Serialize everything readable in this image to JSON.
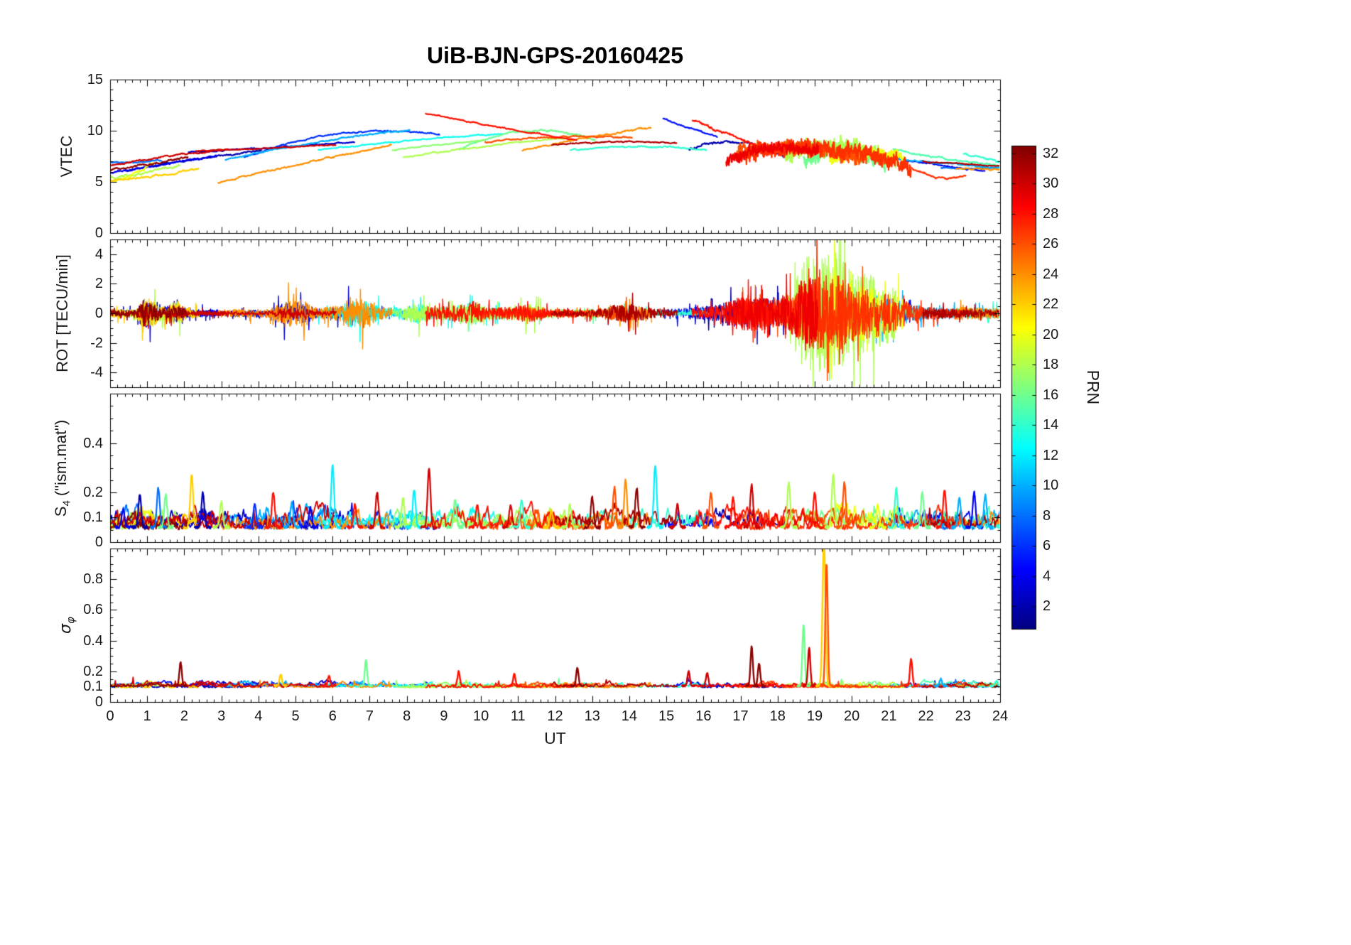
{
  "chart_data": {
    "type": "line",
    "title": "UiB-BJN-GPS-20160425",
    "xlabel": "UT",
    "x_range": [
      0,
      24
    ],
    "x_ticks": [
      0,
      1,
      2,
      3,
      4,
      5,
      6,
      7,
      8,
      9,
      10,
      11,
      12,
      13,
      14,
      15,
      16,
      17,
      18,
      19,
      20,
      21,
      22,
      23,
      24
    ],
    "colorbar": {
      "label": "PRN",
      "colormap": "jet",
      "vmin": 0.5,
      "vmax": 32.5,
      "ticks": [
        2,
        4,
        6,
        8,
        10,
        12,
        14,
        16,
        18,
        20,
        22,
        24,
        26,
        28,
        30,
        32
      ]
    },
    "panels": [
      {
        "name": "VTEC",
        "ylabel": "VTEC",
        "ylim": [
          0,
          15
        ],
        "yticks": [
          0,
          5,
          10,
          15
        ]
      },
      {
        "name": "ROT",
        "ylabel": "ROT [TECU/min]",
        "ylim": [
          -5,
          5
        ],
        "yticks": [
          -4,
          -2,
          0,
          2,
          4
        ]
      },
      {
        "name": "S4",
        "ylabel_main": "S",
        "ylabel_sub": "4",
        "ylabel_rest": " (\"ism.mat\")",
        "ylim": [
          0,
          0.6
        ],
        "yticks": [
          0,
          0.1,
          0.2,
          0.4
        ],
        "baseline": 0.06,
        "spikes": [
          {
            "t": 0.35,
            "h": 0.13,
            "prn": 4
          },
          {
            "t": 0.8,
            "h": 0.19,
            "prn": 2
          },
          {
            "t": 1.3,
            "h": 0.22,
            "prn": 8
          },
          {
            "t": 1.5,
            "h": 0.19,
            "prn": 16
          },
          {
            "t": 2.2,
            "h": 0.27,
            "prn": 22
          },
          {
            "t": 2.5,
            "h": 0.2,
            "prn": 2
          },
          {
            "t": 3.0,
            "h": 0.16,
            "prn": 18
          },
          {
            "t": 3.9,
            "h": 0.15,
            "prn": 6
          },
          {
            "t": 4.4,
            "h": 0.2,
            "prn": 28
          },
          {
            "t": 4.9,
            "h": 0.16,
            "prn": 10
          },
          {
            "t": 5.4,
            "h": 0.14,
            "prn": 4
          },
          {
            "t": 6.0,
            "h": 0.31,
            "prn": 12
          },
          {
            "t": 6.6,
            "h": 0.15,
            "prn": 28
          },
          {
            "t": 7.2,
            "h": 0.2,
            "prn": 30
          },
          {
            "t": 7.9,
            "h": 0.18,
            "prn": 18
          },
          {
            "t": 8.2,
            "h": 0.21,
            "prn": 12
          },
          {
            "t": 8.6,
            "h": 0.3,
            "prn": 30
          },
          {
            "t": 9.3,
            "h": 0.17,
            "prn": 16
          },
          {
            "t": 9.9,
            "h": 0.15,
            "prn": 28
          },
          {
            "t": 10.8,
            "h": 0.15,
            "prn": 30
          },
          {
            "t": 11.1,
            "h": 0.17,
            "prn": 14
          },
          {
            "t": 11.9,
            "h": 0.13,
            "prn": 22
          },
          {
            "t": 12.4,
            "h": 0.15,
            "prn": 18
          },
          {
            "t": 13.0,
            "h": 0.18,
            "prn": 32
          },
          {
            "t": 13.6,
            "h": 0.22,
            "prn": 26
          },
          {
            "t": 13.9,
            "h": 0.25,
            "prn": 24
          },
          {
            "t": 14.2,
            "h": 0.22,
            "prn": 32
          },
          {
            "t": 14.7,
            "h": 0.31,
            "prn": 12
          },
          {
            "t": 15.3,
            "h": 0.15,
            "prn": 30
          },
          {
            "t": 16.2,
            "h": 0.2,
            "prn": 26
          },
          {
            "t": 16.8,
            "h": 0.18,
            "prn": 28
          },
          {
            "t": 17.3,
            "h": 0.23,
            "prn": 30
          },
          {
            "t": 18.3,
            "h": 0.24,
            "prn": 18
          },
          {
            "t": 19.0,
            "h": 0.2,
            "prn": 28
          },
          {
            "t": 19.5,
            "h": 0.27,
            "prn": 18
          },
          {
            "t": 19.8,
            "h": 0.24,
            "prn": 26
          },
          {
            "t": 20.7,
            "h": 0.15,
            "prn": 20
          },
          {
            "t": 21.2,
            "h": 0.22,
            "prn": 14
          },
          {
            "t": 21.9,
            "h": 0.2,
            "prn": 16
          },
          {
            "t": 22.5,
            "h": 0.21,
            "prn": 28
          },
          {
            "t": 22.9,
            "h": 0.18,
            "prn": 10
          },
          {
            "t": 23.3,
            "h": 0.2,
            "prn": 4
          },
          {
            "t": 23.6,
            "h": 0.19,
            "prn": 10
          }
        ]
      },
      {
        "name": "sigma_phi",
        "ylabel_main": "σ",
        "ylabel_sub": "φ",
        "ylim": [
          0,
          1.0
        ],
        "yticks": [
          0,
          0.1,
          0.2,
          0.4,
          0.6,
          0.8
        ],
        "baseline": 0.1,
        "spikes": [
          {
            "t": 1.9,
            "h": 0.26,
            "prn": 32
          },
          {
            "t": 4.6,
            "h": 0.18,
            "prn": 22
          },
          {
            "t": 5.9,
            "h": 0.17,
            "prn": 28
          },
          {
            "t": 6.9,
            "h": 0.27,
            "prn": 16
          },
          {
            "t": 9.4,
            "h": 0.2,
            "prn": 28
          },
          {
            "t": 10.9,
            "h": 0.18,
            "prn": 28
          },
          {
            "t": 12.6,
            "h": 0.22,
            "prn": 32
          },
          {
            "t": 15.6,
            "h": 0.2,
            "prn": 30
          },
          {
            "t": 16.1,
            "h": 0.19,
            "prn": 30
          },
          {
            "t": 17.3,
            "h": 0.36,
            "prn": 32
          },
          {
            "t": 17.5,
            "h": 0.25,
            "prn": 32
          },
          {
            "t": 18.7,
            "h": 0.5,
            "prn": 16
          },
          {
            "t": 18.85,
            "h": 0.35,
            "prn": 30
          },
          {
            "t": 19.25,
            "h": 1.05,
            "prn": 22,
            "w": 0.055
          },
          {
            "t": 19.32,
            "h": 0.9,
            "prn": 26
          },
          {
            "t": 21.6,
            "h": 0.28,
            "prn": 28
          },
          {
            "t": 22.4,
            "h": 0.15,
            "prn": 10
          },
          {
            "t": 23.9,
            "h": 0.14,
            "prn": 14
          }
        ]
      }
    ],
    "arcs": [
      {
        "prn": 30,
        "t0": 0,
        "t1": 3.2,
        "v": [
          6.6,
          7.6,
          8.2
        ],
        "n": 0.15
      },
      {
        "prn": 32,
        "t0": 0,
        "t1": 2.1,
        "v": [
          6.2,
          6.6,
          7.4
        ],
        "n": 0.2
      },
      {
        "prn": 22,
        "t0": 0,
        "t1": 2.4,
        "v": [
          5.1,
          5.4,
          6.3
        ],
        "n": 0.2
      },
      {
        "prn": 18,
        "t0": 0,
        "t1": 1.9,
        "v": [
          5.4,
          5.9,
          6.6
        ],
        "n": 0.25
      },
      {
        "prn": 4,
        "t0": 0,
        "t1": 2.9,
        "v": [
          5.9,
          6.6,
          7.6
        ],
        "n": 0.2
      },
      {
        "prn": 8,
        "t0": 0,
        "t1": 1.4,
        "v": [
          6.9,
          6.8,
          7.1
        ],
        "n": 0.15
      },
      {
        "prn": 2,
        "t0": 0.4,
        "t1": 4.1,
        "v": [
          6.1,
          7.3,
          8.1
        ],
        "n": 0.18
      },
      {
        "prn": 20,
        "t0": 0.1,
        "t1": 1.2,
        "v": [
          5.0,
          5.6,
          6.9
        ],
        "n": 0.3
      },
      {
        "prn": 24,
        "t0": 2.9,
        "t1": 7.6,
        "v": [
          4.9,
          6.9,
          8.6
        ],
        "n": 0.15
      },
      {
        "prn": 10,
        "t0": 3.1,
        "t1": 8.1,
        "v": [
          7.1,
          9.2,
          10.1
        ],
        "n": 0.15
      },
      {
        "prn": 6,
        "t0": 3.6,
        "t1": 8.9,
        "v": [
          7.4,
          10.9,
          9.6
        ],
        "n": 0.15
      },
      {
        "prn": 3,
        "t0": 2.1,
        "t1": 6.6,
        "v": [
          7.9,
          8.3,
          8.9
        ],
        "n": 0.12
      },
      {
        "prn": 30,
        "t0": 2.3,
        "t1": 6.1,
        "v": [
          8.0,
          8.3,
          8.6
        ],
        "n": 0.1
      },
      {
        "prn": 13,
        "t0": 5.6,
        "t1": 10.6,
        "v": [
          8.1,
          9.2,
          9.7
        ],
        "n": 0.12
      },
      {
        "prn": 28,
        "t0": 8.5,
        "t1": 12.6,
        "v": [
          11.7,
          10.2,
          9.1
        ],
        "n": 0.12
      },
      {
        "prn": 17,
        "t0": 7.6,
        "t1": 10.1,
        "v": [
          8.1,
          8.7,
          9.1
        ],
        "n": 0.12
      },
      {
        "prn": 18,
        "t0": 7.9,
        "t1": 12.4,
        "v": [
          7.4,
          8.6,
          9.4
        ],
        "n": 0.15
      },
      {
        "prn": 16,
        "t0": 9.4,
        "t1": 13.1,
        "v": [
          8.2,
          11.3,
          9.1
        ],
        "n": 0.2
      },
      {
        "prn": 26,
        "t0": 10.1,
        "t1": 14.1,
        "v": [
          8.9,
          9.7,
          9.3
        ],
        "n": 0.15
      },
      {
        "prn": 24,
        "t0": 11.1,
        "t1": 14.6,
        "v": [
          8.1,
          9.4,
          10.3
        ],
        "n": 0.18
      },
      {
        "prn": 31,
        "t0": 11.9,
        "t1": 15.3,
        "v": [
          8.6,
          9.1,
          8.8
        ],
        "n": 0.12
      },
      {
        "prn": 14,
        "t0": 12.4,
        "t1": 16.1,
        "v": [
          8.1,
          8.8,
          8.1
        ],
        "n": 0.15
      },
      {
        "prn": 5,
        "t0": 14.9,
        "t1": 16.4,
        "v": [
          11.2,
          10.1,
          9.4
        ],
        "n": 0.15
      },
      {
        "prn": 2,
        "t0": 15.6,
        "t1": 18.2,
        "v": [
          8.1,
          9.9,
          7.4
        ],
        "n": 0.3
      },
      {
        "prn": 28,
        "t0": 15.7,
        "t1": 17.9,
        "v": [
          11.1,
          9.4,
          7.9
        ],
        "n": 0.3
      },
      {
        "prn": 29,
        "t0": 16.6,
        "t1": 19.1,
        "v": [
          7.1,
          9.1,
          7.9
        ],
        "n": 0.55,
        "hf": 1
      },
      {
        "prn": 27,
        "t0": 17.0,
        "t1": 21.6,
        "v": [
          7.6,
          9.4,
          6.6
        ],
        "n": 0.8,
        "hf": 1
      },
      {
        "prn": 18,
        "t0": 18.2,
        "t1": 21.2,
        "v": [
          7.4,
          9.6,
          6.9
        ],
        "n": 0.85,
        "hf": 1
      },
      {
        "prn": 16,
        "t0": 18.7,
        "t1": 20.9,
        "v": [
          7.1,
          9.2,
          6.6
        ],
        "n": 0.7,
        "hf": 1
      },
      {
        "prn": 20,
        "t0": 19.4,
        "t1": 21.4,
        "v": [
          7.1,
          8.4,
          7.4
        ],
        "n": 0.5,
        "hf": 1
      },
      {
        "prn": 26,
        "t0": 16.9,
        "t1": 20.4,
        "v": [
          7.9,
          8.9,
          7.1
        ],
        "n": 0.7,
        "hf": 1
      },
      {
        "prn": 10,
        "t0": 20.6,
        "t1": 24,
        "v": [
          7.4,
          7.0,
          6.3
        ],
        "n": 0.2
      },
      {
        "prn": 15,
        "t0": 21.1,
        "t1": 24,
        "v": [
          8.2,
          7.0,
          6.6
        ],
        "n": 0.2
      },
      {
        "prn": 27,
        "t0": 21.6,
        "t1": 23.1,
        "v": [
          6.4,
          4.9,
          5.6
        ],
        "n": 0.2
      },
      {
        "prn": 31,
        "t0": 21.9,
        "t1": 24,
        "v": [
          7.0,
          6.8,
          6.5
        ],
        "n": 0.12
      },
      {
        "prn": 4,
        "t0": 21.0,
        "t1": 23.6,
        "v": [
          7.4,
          6.6,
          6.1
        ],
        "n": 0.15
      },
      {
        "prn": 8,
        "t0": 22.4,
        "t1": 24,
        "v": [
          6.4,
          6.2,
          6.4
        ],
        "n": 0.12
      },
      {
        "prn": 14,
        "t0": 23.0,
        "t1": 24,
        "v": [
          7.7,
          7.5,
          6.9
        ],
        "n": 0.2
      },
      {
        "prn": 24,
        "t0": 22.8,
        "t1": 24,
        "v": [
          6.3,
          6.4,
          6.2
        ],
        "n": 0.15
      }
    ],
    "rot_envelope": [
      [
        0,
        0.25
      ],
      [
        0.7,
        0.25
      ],
      [
        0.9,
        1.2
      ],
      [
        1.1,
        0.9
      ],
      [
        1.4,
        0.4
      ],
      [
        1.8,
        0.8
      ],
      [
        2.1,
        0.3
      ],
      [
        3,
        0.25
      ],
      [
        4.3,
        0.3
      ],
      [
        4.7,
        0.9
      ],
      [
        5.2,
        0.9
      ],
      [
        5.6,
        0.35
      ],
      [
        6.2,
        0.5
      ],
      [
        6.5,
        1.1
      ],
      [
        7.0,
        0.9
      ],
      [
        7.4,
        0.4
      ],
      [
        8.0,
        0.5
      ],
      [
        8.3,
        0.8
      ],
      [
        8.7,
        0.4
      ],
      [
        9.4,
        0.6
      ],
      [
        9.8,
        0.9
      ],
      [
        10.2,
        0.4
      ],
      [
        11.0,
        0.5
      ],
      [
        11.3,
        0.7
      ],
      [
        11.8,
        0.3
      ],
      [
        12.5,
        0.3
      ],
      [
        13.3,
        0.5
      ],
      [
        13.6,
        0.9
      ],
      [
        14.1,
        1.0
      ],
      [
        14.5,
        0.6
      ],
      [
        15.0,
        0.4
      ],
      [
        15.6,
        0.4
      ],
      [
        16.3,
        0.5
      ],
      [
        16.8,
        0.9
      ],
      [
        17.2,
        1.1
      ],
      [
        17.6,
        1.0
      ],
      [
        18.0,
        0.8
      ],
      [
        18.4,
        1.3
      ],
      [
        18.7,
        2.2
      ],
      [
        19.0,
        2.4
      ],
      [
        19.3,
        2.3
      ],
      [
        19.6,
        2.4
      ],
      [
        19.9,
        1.8
      ],
      [
        20.3,
        1.6
      ],
      [
        20.7,
        1.4
      ],
      [
        21.1,
        1.1
      ],
      [
        21.5,
        0.8
      ],
      [
        22.0,
        0.5
      ],
      [
        22.6,
        0.4
      ],
      [
        23.2,
        0.35
      ],
      [
        24,
        0.3
      ]
    ]
  }
}
